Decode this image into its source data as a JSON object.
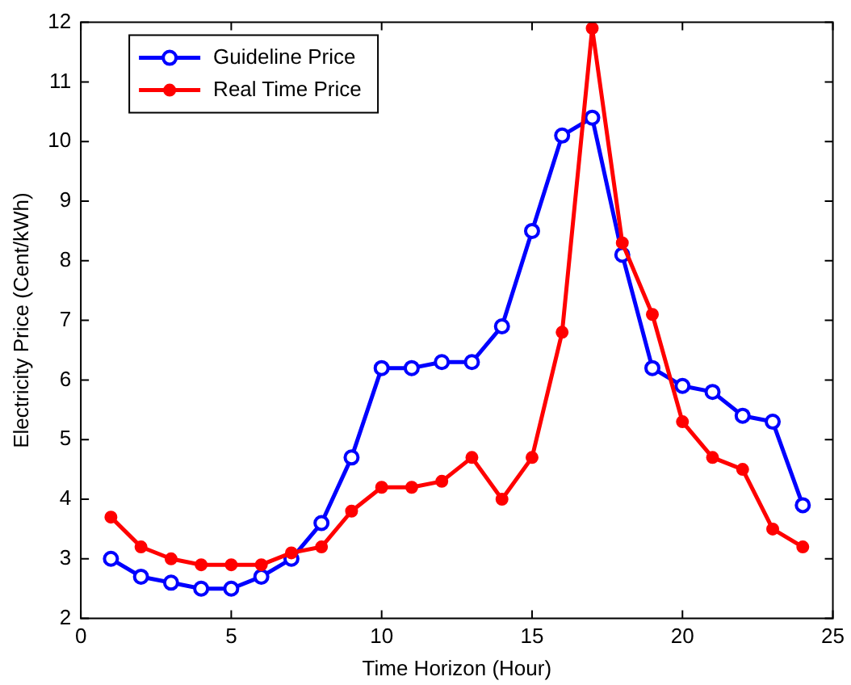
{
  "chart_data": {
    "type": "line",
    "xlabel": "Time Horizon (Hour)",
    "ylabel": "Electricity Price (Cent/kWh)",
    "x": [
      1,
      2,
      3,
      4,
      5,
      6,
      7,
      8,
      9,
      10,
      11,
      12,
      13,
      14,
      15,
      16,
      17,
      18,
      19,
      20,
      21,
      22,
      23,
      24
    ],
    "xlim": [
      0,
      25
    ],
    "xticks": [
      0,
      5,
      10,
      15,
      20,
      25
    ],
    "ylim": [
      2,
      12
    ],
    "yticks": [
      2,
      3,
      4,
      5,
      6,
      7,
      8,
      9,
      10,
      11,
      12
    ],
    "grid": false,
    "legend": "top left",
    "marker": "circle",
    "line_style": "solid",
    "series": [
      {
        "name": "Guideline Price",
        "color": "#0000ff",
        "values": [
          3.0,
          2.7,
          2.6,
          2.5,
          2.5,
          2.7,
          3.0,
          3.6,
          4.7,
          6.2,
          6.2,
          6.3,
          6.3,
          6.9,
          8.5,
          10.1,
          10.4,
          8.1,
          6.2,
          5.9,
          5.8,
          5.4,
          5.3,
          3.9
        ]
      },
      {
        "name": "Real Time Price",
        "color": "#ff0000",
        "values": [
          3.7,
          3.2,
          3.0,
          2.9,
          2.9,
          2.9,
          3.1,
          3.2,
          3.8,
          4.2,
          4.2,
          4.3,
          4.7,
          4.0,
          4.7,
          6.8,
          11.9,
          8.3,
          7.1,
          5.3,
          4.7,
          4.5,
          3.5,
          3.2
        ]
      }
    ]
  }
}
